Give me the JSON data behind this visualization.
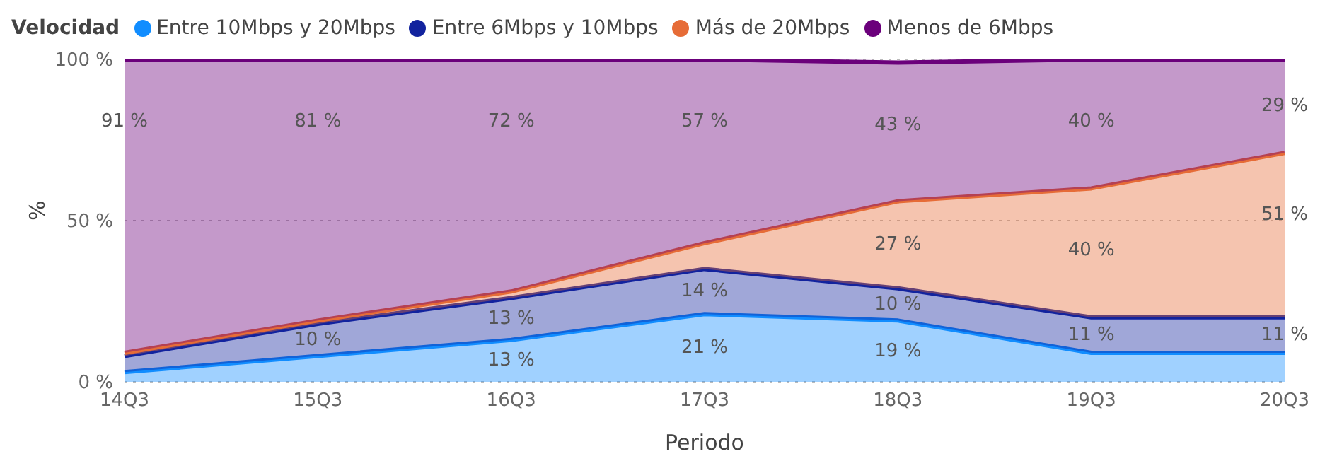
{
  "chart_data": {
    "type": "area",
    "stacked": true,
    "xlabel": "Periodo",
    "ylabel": "%",
    "legend_title": "Velocidad",
    "legend": "top left",
    "grid": "y",
    "line_style": "solid",
    "marker": "none",
    "categories": [
      "14Q3",
      "15Q3",
      "16Q3",
      "17Q3",
      "18Q3",
      "19Q3",
      "20Q3"
    ],
    "ylim": [
      0,
      100
    ],
    "yticks": [
      {
        "value": 0,
        "label": "0 %"
      },
      {
        "value": 50,
        "label": "50 %"
      },
      {
        "value": 100,
        "label": "100 %"
      }
    ],
    "series": [
      {
        "name": "Entre 10Mbps y 20Mbps",
        "color": "#118dff",
        "values": [
          3,
          8,
          13,
          21,
          19,
          9,
          9
        ],
        "value_labels": [
          null,
          null,
          "13 %",
          "21 %",
          "19 %",
          null,
          null
        ]
      },
      {
        "name": "Entre 6Mbps y 10Mbps",
        "color": "#12239e",
        "values": [
          5,
          10,
          13,
          14,
          10,
          11,
          11
        ],
        "value_labels": [
          null,
          "10 %",
          "13 %",
          "14 %",
          "10 %",
          "11 %",
          "11 %"
        ]
      },
      {
        "name": "Más de 20Mbps",
        "color": "#e66c37",
        "values": [
          1,
          1,
          2,
          8,
          27,
          40,
          51
        ],
        "value_labels": [
          null,
          null,
          null,
          null,
          "27 %",
          "40 %",
          "51 %"
        ]
      },
      {
        "name": "Menos de 6Mbps",
        "color": "#6b007b",
        "values": [
          91,
          81,
          72,
          57,
          43,
          40,
          29
        ],
        "value_labels": [
          "91 %",
          "81 %",
          "72 %",
          "57 %",
          "43 %",
          "40 %",
          "29 %"
        ]
      }
    ]
  }
}
